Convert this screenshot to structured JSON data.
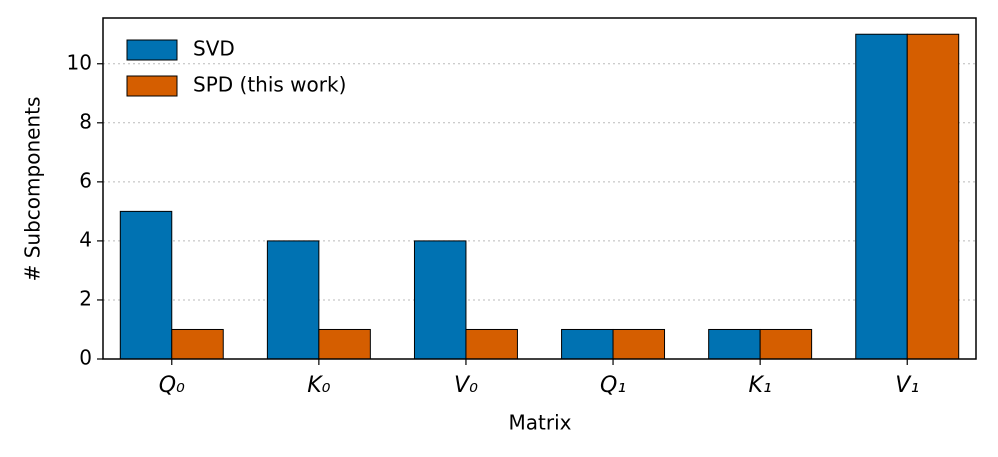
{
  "chart_data": {
    "type": "bar",
    "xlabel": "Matrix",
    "ylabel": "# Subcomponents",
    "categories": [
      "Q₀",
      "K₀",
      "V₀",
      "Q₁",
      "K₁",
      "V₁"
    ],
    "series": [
      {
        "name": "SVD",
        "color": "#0072b2",
        "values": [
          5,
          4,
          4,
          1,
          1,
          11
        ]
      },
      {
        "name": "SPD (this work)",
        "color": "#d55e00",
        "values": [
          1,
          1,
          1,
          1,
          1,
          11
        ]
      }
    ],
    "ylim": [
      0,
      11.55
    ],
    "yticks": [
      0,
      2,
      4,
      6,
      8,
      10
    ],
    "grid": true,
    "legend": "upper left"
  }
}
